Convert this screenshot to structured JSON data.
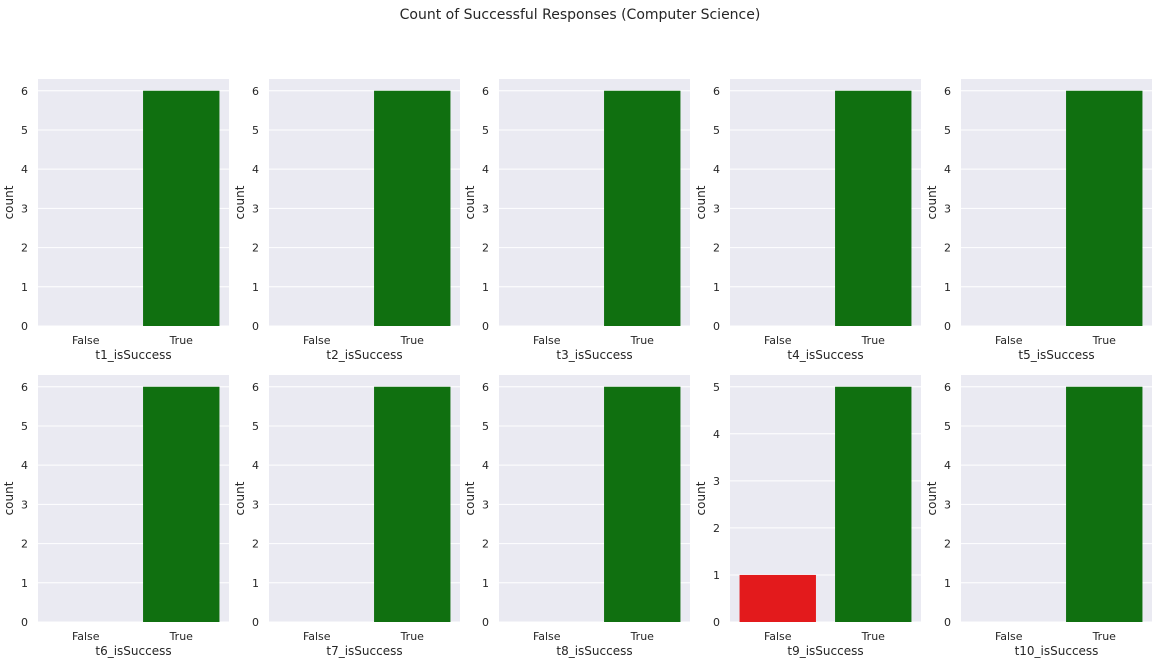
{
  "suptitle": "Count of Successful Responses (Computer Science)",
  "colors": {
    "axes_background": "#eaeaf2",
    "grid": "#ffffff",
    "false_bar": "#e31a1c",
    "true_bar": "#107010",
    "text": "#262626"
  },
  "chart_data": [
    {
      "type": "bar",
      "xlabel": "t1_isSuccess",
      "ylabel": "count",
      "categories": [
        "False",
        "True"
      ],
      "values": [
        0,
        6
      ],
      "yticks": [
        "0",
        "1",
        "2",
        "3",
        "4",
        "5",
        "6"
      ],
      "ylim": [
        0,
        6.3
      ],
      "grid": true
    },
    {
      "type": "bar",
      "xlabel": "t2_isSuccess",
      "ylabel": "count",
      "categories": [
        "False",
        "True"
      ],
      "values": [
        0,
        6
      ],
      "yticks": [
        "0",
        "1",
        "2",
        "3",
        "4",
        "5",
        "6"
      ],
      "ylim": [
        0,
        6.3
      ],
      "grid": true
    },
    {
      "type": "bar",
      "xlabel": "t3_isSuccess",
      "ylabel": "count",
      "categories": [
        "False",
        "True"
      ],
      "values": [
        0,
        6
      ],
      "yticks": [
        "0",
        "1",
        "2",
        "3",
        "4",
        "5",
        "6"
      ],
      "ylim": [
        0,
        6.3
      ],
      "grid": true
    },
    {
      "type": "bar",
      "xlabel": "t4_isSuccess",
      "ylabel": "count",
      "categories": [
        "False",
        "True"
      ],
      "values": [
        0,
        6
      ],
      "yticks": [
        "0",
        "1",
        "2",
        "3",
        "4",
        "5",
        "6"
      ],
      "ylim": [
        0,
        6.3
      ],
      "grid": true
    },
    {
      "type": "bar",
      "xlabel": "t5_isSuccess",
      "ylabel": "count",
      "categories": [
        "False",
        "True"
      ],
      "values": [
        0,
        6
      ],
      "yticks": [
        "0",
        "1",
        "2",
        "3",
        "4",
        "5",
        "6"
      ],
      "ylim": [
        0,
        6.3
      ],
      "grid": true
    },
    {
      "type": "bar",
      "xlabel": "t6_isSuccess",
      "ylabel": "count",
      "categories": [
        "False",
        "True"
      ],
      "values": [
        0,
        6
      ],
      "yticks": [
        "0",
        "1",
        "2",
        "3",
        "4",
        "5",
        "6"
      ],
      "ylim": [
        0,
        6.3
      ],
      "grid": true
    },
    {
      "type": "bar",
      "xlabel": "t7_isSuccess",
      "ylabel": "count",
      "categories": [
        "False",
        "True"
      ],
      "values": [
        0,
        6
      ],
      "yticks": [
        "0",
        "1",
        "2",
        "3",
        "4",
        "5",
        "6"
      ],
      "ylim": [
        0,
        6.3
      ],
      "grid": true
    },
    {
      "type": "bar",
      "xlabel": "t8_isSuccess",
      "ylabel": "count",
      "categories": [
        "False",
        "True"
      ],
      "values": [
        0,
        6
      ],
      "yticks": [
        "0",
        "1",
        "2",
        "3",
        "4",
        "5",
        "6"
      ],
      "ylim": [
        0,
        6.3
      ],
      "grid": true
    },
    {
      "type": "bar",
      "xlabel": "t9_isSuccess",
      "ylabel": "count",
      "categories": [
        "False",
        "True"
      ],
      "values": [
        1,
        5
      ],
      "yticks": [
        "0",
        "1",
        "2",
        "3",
        "4",
        "5"
      ],
      "ylim": [
        0,
        5.25
      ],
      "grid": true
    },
    {
      "type": "bar",
      "xlabel": "t10_isSuccess",
      "ylabel": "count",
      "categories": [
        "False",
        "True"
      ],
      "values": [
        0,
        6
      ],
      "yticks": [
        "0",
        "1",
        "2",
        "3",
        "4",
        "5",
        "6"
      ],
      "ylim": [
        0,
        6.3
      ],
      "grid": true
    }
  ]
}
